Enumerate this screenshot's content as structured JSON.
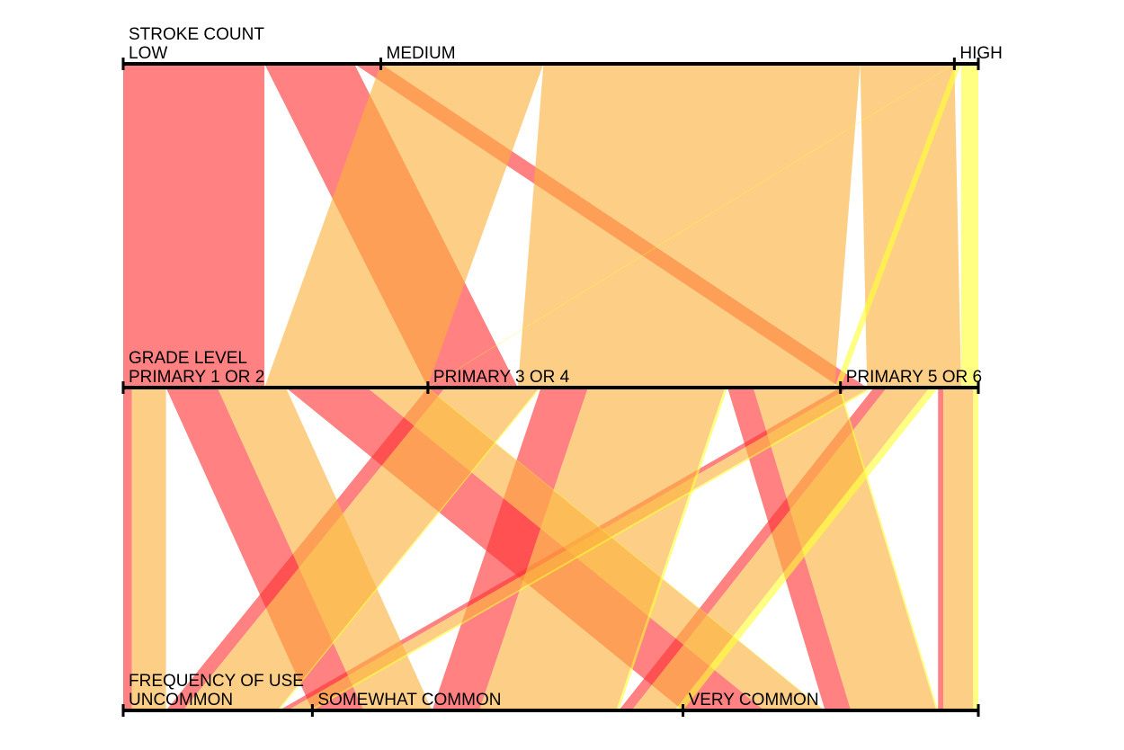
{
  "chart_data": {
    "type": "parallel-sets",
    "dimensions": [
      {
        "title": "STROKE COUNT",
        "categories": [
          "LOW",
          "MEDIUM",
          "HIGH"
        ]
      },
      {
        "title": "GRADE LEVEL",
        "categories": [
          "PRIMARY 1 OR 2",
          "PRIMARY 3 OR 4",
          "PRIMARY 5 OR 6"
        ]
      },
      {
        "title": "FREQUENCY OF USE",
        "categories": [
          "UNCOMMON",
          "SOMEWHAT COMMON",
          "VERY COMMON"
        ]
      }
    ],
    "colors": {
      "LOW": "#ff3333",
      "MEDIUM": "#fbb23c",
      "HIGH": "#ffff33"
    },
    "flows": [
      {
        "path": [
          "LOW",
          "PRIMARY 1 OR 2",
          "UNCOMMON"
        ],
        "value": 10
      },
      {
        "path": [
          "LOW",
          "PRIMARY 1 OR 2",
          "SOMEWHAT COMMON"
        ],
        "value": 60
      },
      {
        "path": [
          "LOW",
          "PRIMARY 1 OR 2",
          "VERY COMMON"
        ],
        "value": 95
      },
      {
        "path": [
          "LOW",
          "PRIMARY 3 OR 4",
          "UNCOMMON"
        ],
        "value": 20
      },
      {
        "path": [
          "LOW",
          "PRIMARY 3 OR 4",
          "SOMEWHAT COMMON"
        ],
        "value": 55
      },
      {
        "path": [
          "LOW",
          "PRIMARY 3 OR 4",
          "VERY COMMON"
        ],
        "value": 30
      },
      {
        "path": [
          "LOW",
          "PRIMARY 5 OR 6",
          "UNCOMMON"
        ],
        "value": 10
      },
      {
        "path": [
          "LOW",
          "PRIMARY 5 OR 6",
          "SOMEWHAT COMMON"
        ],
        "value": 15
      },
      {
        "path": [
          "LOW",
          "PRIMARY 5 OR 6",
          "VERY COMMON"
        ],
        "value": 6
      },
      {
        "path": [
          "MEDIUM",
          "PRIMARY 1 OR 2",
          "UNCOMMON"
        ],
        "value": 40
      },
      {
        "path": [
          "MEDIUM",
          "PRIMARY 1 OR 2",
          "SOMEWHAT COMMON"
        ],
        "value": 80
      },
      {
        "path": [
          "MEDIUM",
          "PRIMARY 1 OR 2",
          "VERY COMMON"
        ],
        "value": 70
      },
      {
        "path": [
          "MEDIUM",
          "PRIMARY 3 OR 4",
          "UNCOMMON"
        ],
        "value": 110
      },
      {
        "path": [
          "MEDIUM",
          "PRIMARY 3 OR 4",
          "SOMEWHAT COMMON"
        ],
        "value": 160
      },
      {
        "path": [
          "MEDIUM",
          "PRIMARY 3 OR 4",
          "VERY COMMON"
        ],
        "value": 100
      },
      {
        "path": [
          "MEDIUM",
          "PRIMARY 5 OR 6",
          "UNCOMMON"
        ],
        "value": 25
      },
      {
        "path": [
          "MEDIUM",
          "PRIMARY 5 OR 6",
          "SOMEWHAT COMMON"
        ],
        "value": 50
      },
      {
        "path": [
          "MEDIUM",
          "PRIMARY 5 OR 6",
          "VERY COMMON"
        ],
        "value": 35
      },
      {
        "path": [
          "HIGH",
          "PRIMARY 1 OR 2",
          "VERY COMMON"
        ],
        "value": 1
      },
      {
        "path": [
          "HIGH",
          "PRIMARY 3 OR 4",
          "UNCOMMON"
        ],
        "value": 2
      },
      {
        "path": [
          "HIGH",
          "PRIMARY 3 OR 4",
          "SOMEWHAT COMMON"
        ],
        "value": 3
      },
      {
        "path": [
          "HIGH",
          "PRIMARY 3 OR 4",
          "VERY COMMON"
        ],
        "value": 2
      },
      {
        "path": [
          "HIGH",
          "PRIMARY 5 OR 6",
          "UNCOMMON"
        ],
        "value": 4
      },
      {
        "path": [
          "HIGH",
          "PRIMARY 5 OR 6",
          "SOMEWHAT COMMON"
        ],
        "value": 10
      },
      {
        "path": [
          "HIGH",
          "PRIMARY 5 OR 6",
          "VERY COMMON"
        ],
        "value": 6
      }
    ]
  }
}
